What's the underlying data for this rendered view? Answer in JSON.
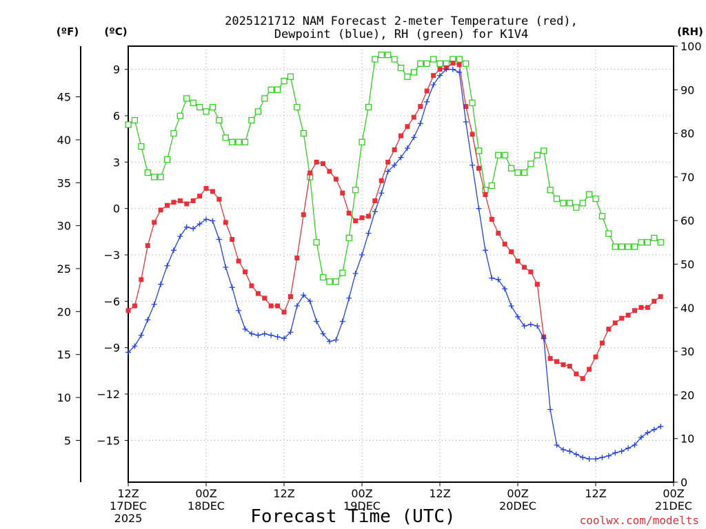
{
  "chart_data": {
    "type": "line",
    "title_line1": "2025121712 NAM Forecast 2-meter Temperature (red),",
    "title_line2": "Dewpoint (blue), RH (green) for K1V4",
    "left_unit_f": "(ºF)",
    "left_unit_c": "(ºC)",
    "right_unit": "(RH)",
    "xlabel": "Forecast Time (UTC)",
    "credit": "coolwx.com/modelts",
    "x_range_hours": [
      0,
      84
    ],
    "x_step_hours": 1,
    "celsius_axis": {
      "range": [
        -17.7,
        10.5
      ],
      "ticks": [
        9,
        6,
        3,
        0,
        -3,
        -6,
        -9,
        -12,
        -15
      ],
      "tick_labels": [
        "9",
        "6",
        "3",
        "0",
        "−3",
        "−6",
        "−9",
        "−12",
        "−15"
      ]
    },
    "fahrenheit_axis": {
      "ticks": [
        45,
        40,
        35,
        30,
        25,
        20,
        15,
        10,
        5
      ],
      "tick_labels": [
        "45",
        "40",
        "35",
        "30",
        "25",
        "20",
        "15",
        "10",
        "5"
      ]
    },
    "rh_axis": {
      "range": [
        0,
        100
      ],
      "ticks": [
        100,
        90,
        80,
        70,
        60,
        50,
        40,
        30,
        20,
        10,
        0
      ],
      "tick_labels": [
        "100",
        "90",
        "80",
        "70",
        "60",
        "50",
        "40",
        "30",
        "20",
        "10",
        "0"
      ]
    },
    "x_ticks": [
      {
        "hour": 0,
        "lines": [
          "12Z",
          "17DEC",
          "2025"
        ]
      },
      {
        "hour": 12,
        "lines": [
          "00Z",
          "18DEC"
        ]
      },
      {
        "hour": 24,
        "lines": [
          "12Z"
        ]
      },
      {
        "hour": 36,
        "lines": [
          "00Z",
          "19DEC"
        ]
      },
      {
        "hour": 48,
        "lines": [
          "12Z"
        ]
      },
      {
        "hour": 60,
        "lines": [
          "00Z",
          "20DEC"
        ]
      },
      {
        "hour": 72,
        "lines": [
          "12Z"
        ]
      },
      {
        "hour": 84,
        "lines": [
          "00Z",
          "21DEC"
        ]
      }
    ],
    "series": [
      {
        "name": "Temperature",
        "unit": "C",
        "color": "#e8303a",
        "marker": "filled-square",
        "values": [
          -6.6,
          -6.3,
          -4.6,
          -2.4,
          -0.9,
          -0.1,
          0.2,
          0.4,
          0.5,
          0.3,
          0.5,
          0.8,
          1.3,
          1.1,
          0.6,
          -0.9,
          -2.0,
          -3.4,
          -4.1,
          -5.0,
          -5.5,
          -5.8,
          -6.3,
          -6.3,
          -6.7,
          -5.7,
          -3.2,
          -0.4,
          2.3,
          3.0,
          2.9,
          2.4,
          1.9,
          1.0,
          -0.3,
          -0.8,
          -0.6,
          -0.5,
          0.5,
          1.8,
          3.0,
          3.8,
          4.7,
          5.3,
          5.9,
          6.6,
          7.6,
          8.6,
          9.0,
          9.1,
          9.4,
          9.3,
          6.6,
          4.8,
          2.6,
          0.9,
          -0.7,
          -1.6,
          -2.3,
          -2.8,
          -3.4,
          -3.8,
          -4.1,
          -4.9,
          -8.3,
          -9.7,
          -9.9,
          -10.1,
          -10.2,
          -10.7,
          -11.0,
          -10.4,
          -9.6,
          -8.7,
          -7.8,
          -7.4,
          -7.1,
          -6.9,
          -6.6,
          -6.4,
          -6.4,
          -6.0,
          -5.7
        ]
      },
      {
        "name": "Dewpoint",
        "unit": "C",
        "color": "#2040e0",
        "marker": "plus",
        "values": [
          -9.3,
          -8.9,
          -8.2,
          -7.2,
          -6.2,
          -4.9,
          -3.7,
          -2.7,
          -1.8,
          -1.2,
          -1.3,
          -1.0,
          -0.7,
          -0.8,
          -2.0,
          -3.8,
          -5.1,
          -6.6,
          -7.8,
          -8.1,
          -8.2,
          -8.1,
          -8.2,
          -8.3,
          -8.4,
          -8.0,
          -6.3,
          -5.6,
          -6.0,
          -7.3,
          -8.1,
          -8.6,
          -8.5,
          -7.3,
          -5.8,
          -4.2,
          -3.0,
          -1.6,
          -0.2,
          1.0,
          2.4,
          2.8,
          3.3,
          3.9,
          4.6,
          5.5,
          6.9,
          8.0,
          8.6,
          9.0,
          9.0,
          8.8,
          5.6,
          2.8,
          0.0,
          -2.7,
          -4.5,
          -4.6,
          -5.2,
          -6.3,
          -7.0,
          -7.6,
          -7.5,
          -7.6,
          -8.4,
          -13.0,
          -15.3,
          -15.6,
          -15.7,
          -15.9,
          -16.1,
          -16.2,
          -16.2,
          -16.1,
          -16.0,
          -15.8,
          -15.7,
          -15.5,
          -15.3,
          -14.8,
          -14.5,
          -14.3,
          -14.1
        ]
      },
      {
        "name": "RH",
        "unit": "%",
        "color": "#30d020",
        "marker": "open-square",
        "values": [
          82,
          83,
          77,
          71,
          70,
          70,
          74,
          80,
          84,
          88,
          87,
          86,
          85,
          86,
          83,
          79,
          78,
          78,
          78,
          83,
          85,
          88,
          90,
          90,
          92,
          93,
          86,
          80,
          70,
          55,
          47,
          46,
          46,
          48,
          56,
          67,
          78,
          86,
          97,
          98,
          98,
          97,
          95,
          93,
          94,
          96,
          96,
          97,
          96,
          96,
          97,
          97,
          96,
          87,
          76,
          67,
          68,
          75,
          75,
          72,
          71,
          71,
          73,
          75,
          76,
          67,
          65,
          64,
          64,
          63,
          64,
          66,
          65,
          61,
          57,
          54,
          54,
          54,
          54,
          55,
          55,
          56,
          55
        ]
      }
    ]
  }
}
